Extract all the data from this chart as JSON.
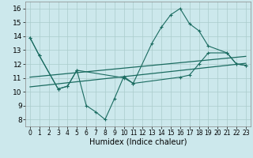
{
  "xlabel": "Humidex (Indice chaleur)",
  "xlim": [
    -0.5,
    23.5
  ],
  "ylim": [
    7.5,
    16.5
  ],
  "xticks": [
    0,
    1,
    2,
    3,
    4,
    5,
    6,
    7,
    8,
    9,
    10,
    11,
    12,
    13,
    14,
    15,
    16,
    17,
    18,
    19,
    20,
    21,
    22,
    23
  ],
  "yticks": [
    8,
    9,
    10,
    11,
    12,
    13,
    14,
    15,
    16
  ],
  "bg_color": "#cce8ec",
  "grid_color": "#aacccc",
  "line_color": "#1a6b60",
  "s1_x": [
    0,
    1,
    3,
    4,
    5,
    6,
    7,
    8,
    9,
    10,
    11,
    13,
    14,
    15,
    16,
    17,
    18,
    19,
    21,
    22,
    23
  ],
  "s1_y": [
    13.9,
    12.6,
    10.2,
    10.4,
    11.55,
    9.0,
    8.55,
    8.0,
    9.5,
    11.1,
    10.6,
    13.5,
    14.65,
    15.55,
    16.0,
    14.9,
    14.4,
    13.3,
    12.8,
    12.0,
    11.9
  ],
  "s2_x": [
    0,
    1,
    3,
    4,
    5,
    10,
    11,
    16,
    17,
    18,
    19,
    21,
    22,
    23
  ],
  "s2_y": [
    13.9,
    12.6,
    10.2,
    10.4,
    11.55,
    11.0,
    10.6,
    11.05,
    11.2,
    12.0,
    12.8,
    12.8,
    12.0,
    11.9
  ],
  "trend1_x": [
    0,
    23
  ],
  "trend1_y": [
    11.05,
    12.55
  ],
  "trend2_x": [
    0,
    23
  ],
  "trend2_y": [
    10.35,
    12.05
  ],
  "font_size_label": 7,
  "font_size_tick": 6
}
